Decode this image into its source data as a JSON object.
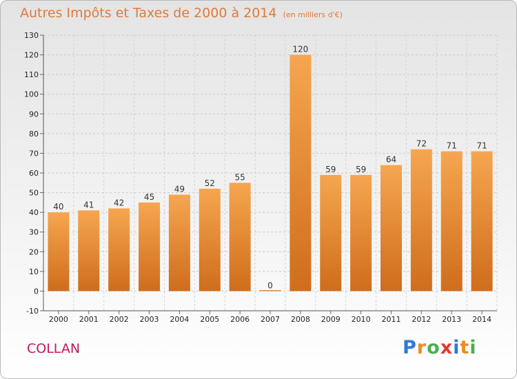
{
  "header": {
    "title": "Autres Impôts et Taxes de 2000 à 2014",
    "unit": "(en milliers d'€)"
  },
  "commune": "COLLAN",
  "logo": {
    "letters": [
      {
        "ch": "P",
        "color": "#2e7bd6"
      },
      {
        "ch": "r",
        "color": "#f08a1c"
      },
      {
        "ch": "o",
        "color": "#4caf50"
      },
      {
        "ch": "x",
        "color": "#e53935"
      },
      {
        "ch": "i",
        "color": "#2e7bd6"
      },
      {
        "ch": "t",
        "color": "#f08a1c"
      },
      {
        "ch": "i",
        "color": "#4caf50"
      }
    ]
  },
  "chart_data": {
    "type": "bar",
    "title": "Autres Impôts et Taxes de 2000 à 2014",
    "subtitle": "(en milliers d'€)",
    "categories": [
      "2000",
      "2001",
      "2002",
      "2003",
      "2004",
      "2005",
      "2006",
      "2007",
      "2008",
      "2009",
      "2010",
      "2011",
      "2012",
      "2013",
      "2014"
    ],
    "values": [
      40,
      41,
      42,
      45,
      49,
      52,
      55,
      0,
      120,
      59,
      59,
      64,
      72,
      71,
      71
    ],
    "ylim": [
      -10,
      130
    ],
    "yticks": [
      -10,
      0,
      10,
      20,
      30,
      40,
      50,
      60,
      70,
      80,
      90,
      100,
      110,
      120,
      130
    ],
    "grid": true,
    "bar_color_top": "#f6a650",
    "bar_color_bottom": "#cf6d1c"
  }
}
